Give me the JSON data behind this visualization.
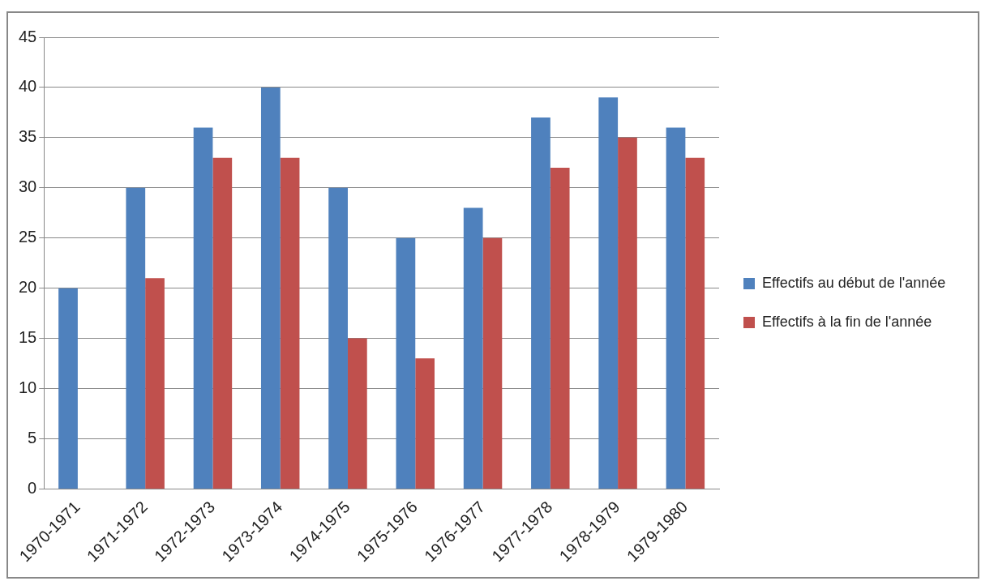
{
  "chart_data": {
    "type": "bar",
    "categories": [
      "1970-1971",
      "1971-1972",
      "1972-1973",
      "1973-1974",
      "1974-1975",
      "1975-1976",
      "1976-1977",
      "1977-1978",
      "1978-1979",
      "1979-1980"
    ],
    "series": [
      {
        "name": "Effectifs au début de l'année",
        "color": "#4f81bd",
        "values": [
          20,
          30,
          36,
          40,
          30,
          25,
          28,
          37,
          39,
          36
        ]
      },
      {
        "name": "Effectifs à la fin de l'année",
        "color": "#c0504d",
        "values": [
          null,
          21,
          33,
          33,
          15,
          13,
          25,
          32,
          35,
          33
        ]
      }
    ],
    "ylim": [
      0,
      45
    ],
    "yticks": [
      0,
      5,
      10,
      15,
      20,
      25,
      30,
      35,
      40,
      45
    ],
    "grid": "y",
    "legend": "right"
  }
}
